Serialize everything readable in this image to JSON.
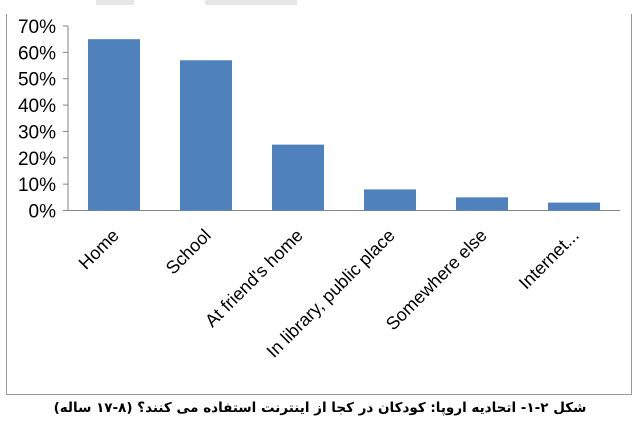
{
  "chart_data": {
    "type": "bar",
    "title": "",
    "xlabel": "",
    "ylabel": "",
    "categories": [
      "Home",
      "School",
      "At friend's home",
      "In library, public place",
      "Somewhere else",
      "Internet..."
    ],
    "values": [
      65,
      57,
      25,
      8,
      5,
      3
    ],
    "yticks": [
      "0%",
      "10%",
      "20%",
      "30%",
      "40%",
      "50%",
      "60%",
      "70%"
    ],
    "ylim": [
      0,
      70
    ],
    "grid": false,
    "legend": "none",
    "bar_color": "#4f81bd",
    "axis_color": "#868686"
  },
  "caption": "شکل ۲-۱- اتحادیه اروپا: کودکان در کجا از اینترنت استفاده می کنند؟ (۸-۱۷ ساله)"
}
